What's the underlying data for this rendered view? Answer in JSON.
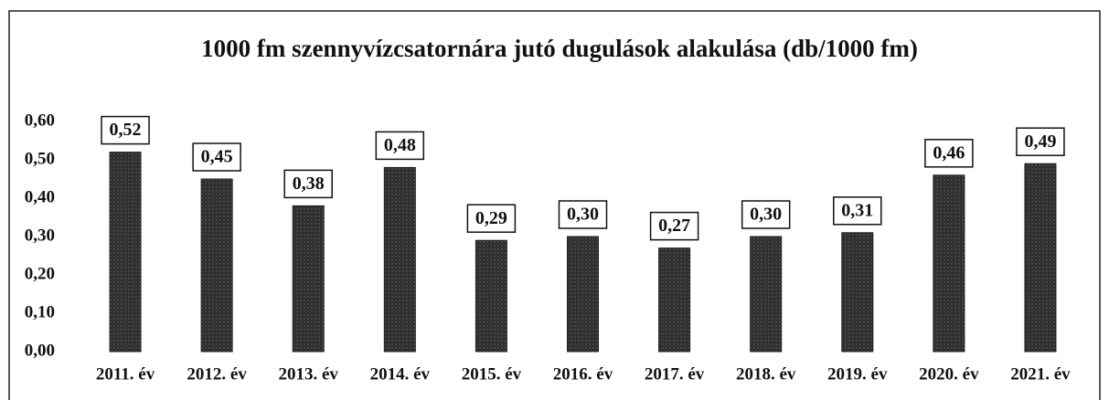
{
  "chart_data": {
    "type": "bar",
    "title": "1000 fm szennyvízcsatornára jutó dugulások alakulása (db/1000 fm)",
    "categories": [
      "2011. év",
      "2012. év",
      "2013. év",
      "2014. év",
      "2015. év",
      "2016. év",
      "2017. év",
      "2018. év",
      "2019. év",
      "2020. év",
      "2021. év"
    ],
    "values": [
      0.52,
      0.45,
      0.38,
      0.48,
      0.29,
      0.3,
      0.27,
      0.3,
      0.31,
      0.46,
      0.49
    ],
    "value_labels": [
      "0,52",
      "0,45",
      "0,38",
      "0,48",
      "0,29",
      "0,30",
      "0,27",
      "0,30",
      "0,31",
      "0,46",
      "0,49"
    ],
    "color": "#1e1e1e",
    "ylim": [
      0,
      0.6
    ],
    "yticks": [
      {
        "value": 0,
        "label": "0,00"
      },
      {
        "value": 0.1,
        "label": "0,10"
      },
      {
        "value": 0.2,
        "label": "0,20"
      },
      {
        "value": 0.3,
        "label": "0,30"
      },
      {
        "value": 0.4,
        "label": "0,40"
      },
      {
        "value": 0.5,
        "label": "0,50"
      },
      {
        "value": 0.6,
        "label": "0,60"
      }
    ],
    "grid": false
  }
}
